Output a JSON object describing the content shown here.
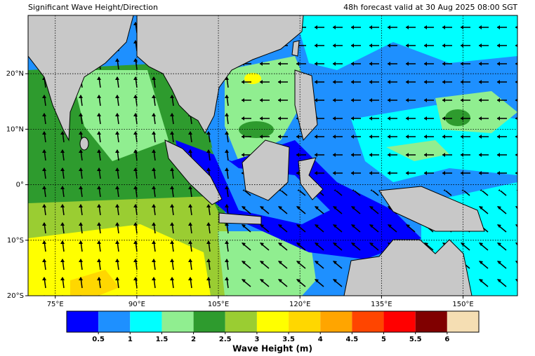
{
  "title_left": "Significant Wave Height/Direction",
  "title_right": "48h forecast valid at 30 Aug 2025 08:00 SGT",
  "map": {
    "xlim": [
      70,
      160
    ],
    "ylim": [
      -20,
      30.5
    ],
    "xticks": [
      {
        "value": 75,
        "label": "75°E"
      },
      {
        "value": 90,
        "label": "90°E"
      },
      {
        "value": 105,
        "label": "105°E"
      },
      {
        "value": 120,
        "label": "120°E"
      },
      {
        "value": 135,
        "label": "135°E"
      },
      {
        "value": 150,
        "label": "150°E"
      }
    ],
    "yticks": [
      {
        "value": 20,
        "label": "20°N"
      },
      {
        "value": 10,
        "label": "10°N"
      },
      {
        "value": 0,
        "label": "0°"
      },
      {
        "value": -10,
        "label": "10°S"
      },
      {
        "value": -20,
        "label": "20°S"
      }
    ],
    "grid": true
  },
  "colorbar": {
    "label": "Wave Height (m)",
    "lim": [
      0,
      6.5
    ],
    "ticks": [
      0.5,
      1,
      1.5,
      2,
      2.5,
      3,
      3.5,
      4,
      4.5,
      5,
      5.5,
      6
    ],
    "colors": [
      "#0000ff",
      "#1e90ff",
      "#00ffff",
      "#90ee90",
      "#2e9b2e",
      "#9acd32",
      "#ffff00",
      "#ffd700",
      "#ffa500",
      "#ff4500",
      "#ff0000",
      "#800000",
      "#f5deb3"
    ]
  }
}
